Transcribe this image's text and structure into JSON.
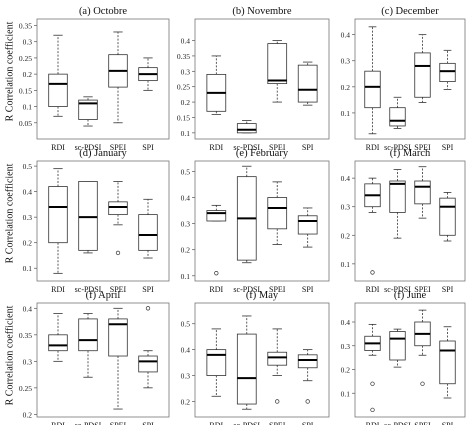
{
  "figure": {
    "ylabel": "R Correlation coefficient"
  },
  "chart_data": [
    {
      "type": "boxplot",
      "title": "(a) Octobre",
      "categories": [
        "RDI",
        "sc-PDSI",
        "SPEI",
        "SPI"
      ],
      "ylim": [
        0.0,
        0.37
      ],
      "yticks": [
        0.05,
        0.1,
        0.15,
        0.2,
        0.25,
        0.3,
        0.35
      ],
      "boxes": [
        {
          "min": 0.07,
          "q1": 0.1,
          "median": 0.17,
          "q3": 0.2,
          "max": 0.32,
          "outliers": []
        },
        {
          "min": 0.04,
          "q1": 0.06,
          "median": 0.11,
          "q3": 0.12,
          "max": 0.13,
          "outliers": []
        },
        {
          "min": 0.05,
          "q1": 0.16,
          "median": 0.21,
          "q3": 0.26,
          "max": 0.33,
          "outliers": []
        },
        {
          "min": 0.15,
          "q1": 0.18,
          "median": 0.2,
          "q3": 0.22,
          "max": 0.25,
          "outliers": []
        }
      ]
    },
    {
      "type": "boxplot",
      "title": "(b) Novembre",
      "categories": [
        "RDI",
        "sc-PDSI",
        "SPEI",
        "SPI"
      ],
      "ylim": [
        0.08,
        0.47
      ],
      "yticks": [
        0.1,
        0.15,
        0.2,
        0.25,
        0.3,
        0.35,
        0.4
      ],
      "boxes": [
        {
          "min": 0.16,
          "q1": 0.17,
          "median": 0.23,
          "q3": 0.29,
          "max": 0.35,
          "outliers": []
        },
        {
          "min": 0.1,
          "q1": 0.1,
          "median": 0.11,
          "q3": 0.13,
          "max": 0.14,
          "outliers": []
        },
        {
          "min": 0.2,
          "q1": 0.26,
          "median": 0.27,
          "q3": 0.39,
          "max": 0.4,
          "outliers": []
        },
        {
          "min": 0.19,
          "q1": 0.2,
          "median": 0.24,
          "q3": 0.32,
          "max": 0.33,
          "outliers": []
        }
      ]
    },
    {
      "type": "boxplot",
      "title": "(c) December",
      "categories": [
        "RDI",
        "sc-PDSI",
        "SPEI",
        "SPI"
      ],
      "ylim": [
        0.0,
        0.46
      ],
      "yticks": [
        0.1,
        0.2,
        0.3,
        0.4
      ],
      "boxes": [
        {
          "min": 0.02,
          "q1": 0.12,
          "median": 0.2,
          "q3": 0.26,
          "max": 0.43,
          "outliers": []
        },
        {
          "min": 0.04,
          "q1": 0.05,
          "median": 0.07,
          "q3": 0.12,
          "max": 0.16,
          "outliers": []
        },
        {
          "min": 0.14,
          "q1": 0.16,
          "median": 0.28,
          "q3": 0.33,
          "max": 0.4,
          "outliers": []
        },
        {
          "min": 0.19,
          "q1": 0.22,
          "median": 0.26,
          "q3": 0.29,
          "max": 0.34,
          "outliers": []
        }
      ]
    },
    {
      "type": "boxplot",
      "title": "(d) January",
      "categories": [
        "RDI",
        "sc-PDSI",
        "SPEI",
        "SPI"
      ],
      "ylim": [
        0.05,
        0.52
      ],
      "yticks": [
        0.1,
        0.2,
        0.3,
        0.4,
        0.5
      ],
      "boxes": [
        {
          "min": 0.08,
          "q1": 0.2,
          "median": 0.34,
          "q3": 0.42,
          "max": 0.49,
          "outliers": []
        },
        {
          "min": 0.16,
          "q1": 0.17,
          "median": 0.3,
          "q3": 0.44,
          "max": 0.44,
          "outliers": []
        },
        {
          "min": 0.27,
          "q1": 0.31,
          "median": 0.34,
          "q3": 0.36,
          "max": 0.44,
          "outliers": [
            0.16
          ]
        },
        {
          "min": 0.14,
          "q1": 0.17,
          "median": 0.23,
          "q3": 0.31,
          "max": 0.37,
          "outliers": []
        }
      ]
    },
    {
      "type": "boxplot",
      "title": "(e) February",
      "categories": [
        "RDI",
        "sc-PDSI",
        "SPEI",
        "SPI"
      ],
      "ylim": [
        0.08,
        0.54
      ],
      "yticks": [
        0.1,
        0.2,
        0.3,
        0.4,
        0.5
      ],
      "boxes": [
        {
          "min": 0.31,
          "q1": 0.31,
          "median": 0.34,
          "q3": 0.35,
          "max": 0.37,
          "outliers": [
            0.11
          ]
        },
        {
          "min": 0.15,
          "q1": 0.16,
          "median": 0.32,
          "q3": 0.48,
          "max": 0.52,
          "outliers": []
        },
        {
          "min": 0.22,
          "q1": 0.28,
          "median": 0.36,
          "q3": 0.4,
          "max": 0.46,
          "outliers": []
        },
        {
          "min": 0.21,
          "q1": 0.26,
          "median": 0.31,
          "q3": 0.33,
          "max": 0.36,
          "outliers": []
        }
      ]
    },
    {
      "type": "boxplot",
      "title": "(f) March",
      "categories": [
        "RDI",
        "sc-PDSI",
        "SPEI",
        "SPI"
      ],
      "ylim": [
        0.04,
        0.46
      ],
      "yticks": [
        0.1,
        0.2,
        0.3,
        0.4
      ],
      "boxes": [
        {
          "min": 0.28,
          "q1": 0.3,
          "median": 0.34,
          "q3": 0.38,
          "max": 0.4,
          "outliers": [
            0.07
          ]
        },
        {
          "min": 0.19,
          "q1": 0.28,
          "median": 0.38,
          "q3": 0.39,
          "max": 0.43,
          "outliers": []
        },
        {
          "min": 0.26,
          "q1": 0.31,
          "median": 0.37,
          "q3": 0.39,
          "max": 0.44,
          "outliers": []
        },
        {
          "min": 0.18,
          "q1": 0.2,
          "median": 0.3,
          "q3": 0.33,
          "max": 0.35,
          "outliers": []
        }
      ]
    },
    {
      "type": "boxplot",
      "title": "(f) April",
      "categories": [
        "RDI",
        "sc-PDSI",
        "SPEI",
        "SPI"
      ],
      "ylim": [
        0.195,
        0.41
      ],
      "yticks": [
        0.2,
        0.25,
        0.3,
        0.35,
        0.4
      ],
      "boxes": [
        {
          "min": 0.3,
          "q1": 0.32,
          "median": 0.33,
          "q3": 0.35,
          "max": 0.39,
          "outliers": []
        },
        {
          "min": 0.27,
          "q1": 0.32,
          "median": 0.34,
          "q3": 0.38,
          "max": 0.39,
          "outliers": []
        },
        {
          "min": 0.21,
          "q1": 0.31,
          "median": 0.37,
          "q3": 0.38,
          "max": 0.4,
          "outliers": []
        },
        {
          "min": 0.25,
          "q1": 0.28,
          "median": 0.3,
          "q3": 0.31,
          "max": 0.32,
          "outliers": [
            0.4
          ]
        }
      ]
    },
    {
      "type": "boxplot",
      "title": "(f) May",
      "categories": [
        "RDI",
        "sc-PDSI",
        "SPEI",
        "SPI"
      ],
      "ylim": [
        0.14,
        0.58
      ],
      "yticks": [
        0.2,
        0.3,
        0.4,
        0.5
      ],
      "boxes": [
        {
          "min": 0.22,
          "q1": 0.3,
          "median": 0.38,
          "q3": 0.4,
          "max": 0.48,
          "outliers": []
        },
        {
          "min": 0.17,
          "q1": 0.19,
          "median": 0.29,
          "q3": 0.46,
          "max": 0.53,
          "outliers": []
        },
        {
          "min": 0.3,
          "q1": 0.34,
          "median": 0.37,
          "q3": 0.39,
          "max": 0.48,
          "outliers": [
            0.2
          ]
        },
        {
          "min": 0.28,
          "q1": 0.33,
          "median": 0.36,
          "q3": 0.38,
          "max": 0.4,
          "outliers": [
            0.2
          ]
        }
      ]
    },
    {
      "type": "boxplot",
      "title": "(f) June",
      "categories": [
        "RDI",
        "sc-PDSI",
        "SPEI",
        "SPI"
      ],
      "ylim": [
        0.0,
        0.48
      ],
      "yticks": [
        0.1,
        0.2,
        0.3,
        0.4
      ],
      "boxes": [
        {
          "min": 0.26,
          "q1": 0.28,
          "median": 0.31,
          "q3": 0.34,
          "max": 0.39,
          "outliers": [
            0.14,
            0.03
          ]
        },
        {
          "min": 0.21,
          "q1": 0.24,
          "median": 0.33,
          "q3": 0.36,
          "max": 0.37,
          "outliers": []
        },
        {
          "min": 0.26,
          "q1": 0.3,
          "median": 0.35,
          "q3": 0.4,
          "max": 0.45,
          "outliers": [
            0.14
          ]
        },
        {
          "min": 0.08,
          "q1": 0.14,
          "median": 0.28,
          "q3": 0.32,
          "max": 0.38,
          "outliers": []
        }
      ]
    }
  ]
}
